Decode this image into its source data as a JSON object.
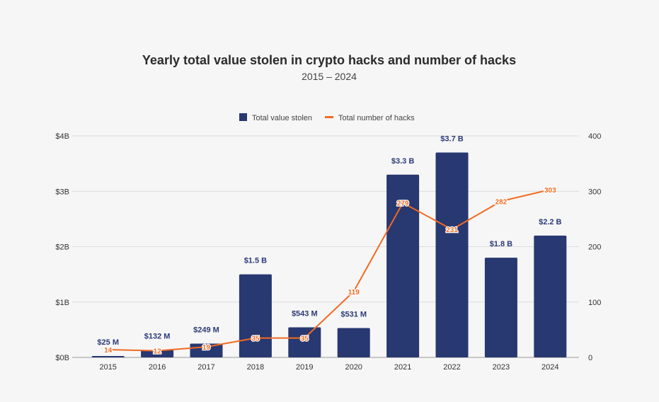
{
  "chart_data": {
    "type": "bar+line",
    "title": "Yearly total value stolen in crypto hacks and number of hacks",
    "subtitle": "2015 – 2024",
    "categories": [
      "2015",
      "2016",
      "2017",
      "2018",
      "2019",
      "2020",
      "2021",
      "2022",
      "2023",
      "2024"
    ],
    "series": [
      {
        "name": "Total value stolen",
        "type": "bar",
        "axis": "left",
        "unit": "$B",
        "color": "#283870",
        "values": [
          0.025,
          0.132,
          0.249,
          1.5,
          0.543,
          0.531,
          3.3,
          3.7,
          1.8,
          2.2
        ],
        "labels": [
          "$25  M",
          "$132  M",
          "$249  M",
          "$1.5 B",
          "$543  M",
          "$531  M",
          "$3.3 B",
          "$3.7 B",
          "$1.8 B",
          "$2.2 B"
        ]
      },
      {
        "name": "Total number of hacks",
        "type": "line",
        "axis": "right",
        "color": "#f26a21",
        "values": [
          14,
          12,
          19,
          35,
          35,
          119,
          279,
          231,
          282,
          303
        ],
        "labels": [
          "14",
          "12",
          "19",
          "35",
          "35",
          "119",
          "279",
          "231",
          "282",
          "303"
        ]
      }
    ],
    "left_axis": {
      "range": [
        0,
        4
      ],
      "ticks": [
        0,
        1,
        2,
        3,
        4
      ],
      "tick_labels": [
        "$0B",
        "$1B",
        "$2B",
        "$3B",
        "$4B"
      ]
    },
    "right_axis": {
      "range": [
        0,
        400
      ],
      "ticks": [
        0,
        100,
        200,
        300,
        400
      ],
      "tick_labels": [
        "0",
        "100",
        "200",
        "300",
        "400"
      ]
    },
    "grid": true,
    "legend": "top"
  }
}
